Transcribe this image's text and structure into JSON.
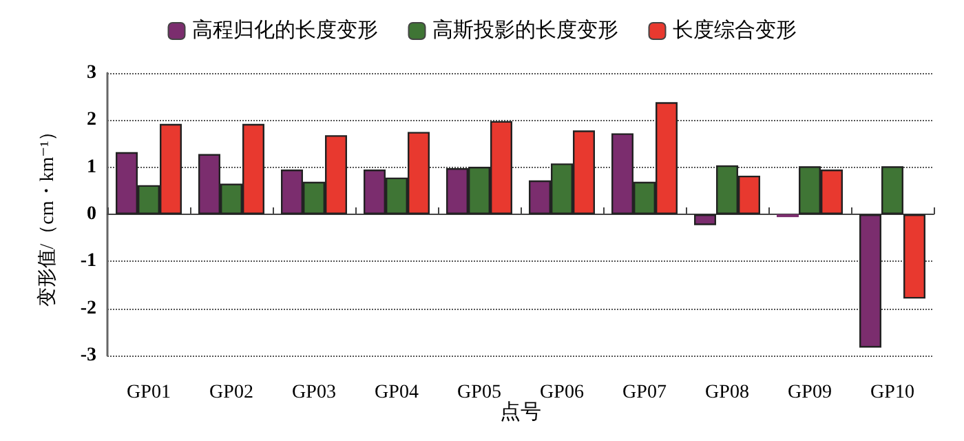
{
  "chart_data": {
    "type": "bar",
    "xlabel": "点号",
    "ylabel": "变形值/（cm・km⁻¹）",
    "categories": [
      "GP01",
      "GP02",
      "GP03",
      "GP04",
      "GP05",
      "GP06",
      "GP07",
      "GP08",
      "GP09",
      "GP10"
    ],
    "series": [
      {
        "name": "高程归化的长度变形",
        "color": "#7b2d6e",
        "values": [
          1.32,
          1.28,
          0.95,
          0.95,
          0.98,
          0.72,
          1.72,
          -0.23,
          -0.06,
          -2.83
        ]
      },
      {
        "name": "高斯投影的长度变形",
        "color": "#3f7535",
        "values": [
          0.62,
          0.65,
          0.69,
          0.78,
          1.01,
          1.08,
          0.69,
          1.04,
          1.02,
          1.02
        ]
      },
      {
        "name": "长度综合变形",
        "color": "#e8392f",
        "values": [
          1.92,
          1.92,
          1.68,
          1.75,
          1.98,
          1.78,
          2.38,
          0.82,
          0.95,
          -1.79
        ]
      }
    ],
    "ylim": [
      -3,
      3
    ],
    "yticks": [
      -3,
      -2,
      -1,
      0,
      1,
      2,
      3
    ],
    "grid": "y",
    "legend": "top"
  }
}
